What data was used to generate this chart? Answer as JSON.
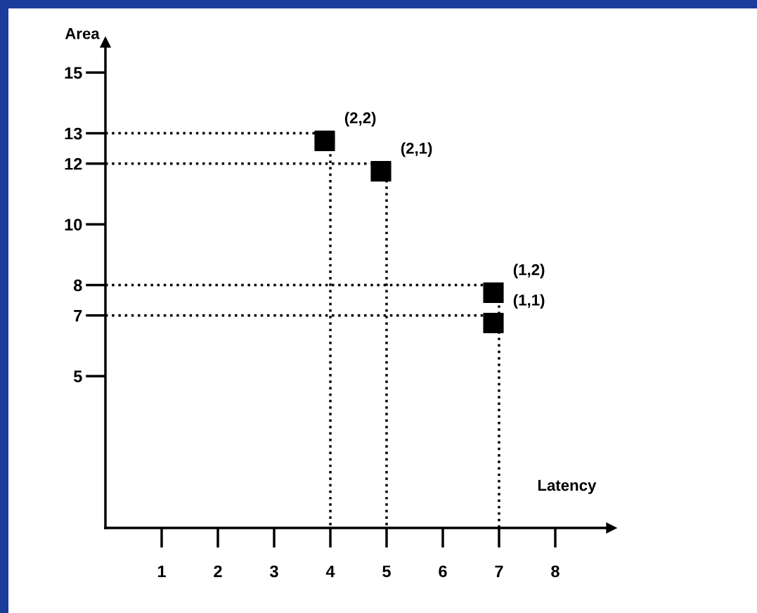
{
  "chart_data": {
    "type": "scatter",
    "xlabel": "Latency",
    "ylabel": "Area",
    "marker": "square",
    "grid": false,
    "xlim": [
      0,
      9
    ],
    "ylim": [
      0,
      16
    ],
    "xticks": [
      1,
      2,
      3,
      4,
      5,
      6,
      7,
      8
    ],
    "yticks": [
      5,
      7,
      8,
      10,
      12,
      13,
      15
    ],
    "series": [
      {
        "color": "#000000",
        "x": [
          3.9,
          4.9,
          6.9,
          6.9
        ],
        "values": [
          12.75,
          11.75,
          7.75,
          6.75
        ]
      },
      {
        "type": "line",
        "line_style": "dotted",
        "marker": "none",
        "color": "#000000",
        "x": [
          0,
          4,
          4
        ],
        "values": [
          13,
          13,
          0
        ]
      },
      {
        "type": "line",
        "line_style": "dotted",
        "marker": "none",
        "color": "#000000",
        "x": [
          0,
          5,
          5
        ],
        "values": [
          12,
          12,
          0
        ]
      },
      {
        "type": "line",
        "line_style": "dotted",
        "marker": "none",
        "color": "#000000",
        "x": [
          0,
          7,
          7
        ],
        "values": [
          8,
          8,
          0
        ]
      },
      {
        "type": "line",
        "line_style": "dotted",
        "marker": "none",
        "color": "#000000",
        "x": [
          0,
          7
        ],
        "values": [
          7,
          7
        ]
      }
    ],
    "annotations": [
      {
        "text": "(2,2)",
        "x": 3.9,
        "y": 12.75
      },
      {
        "text": "(2,1)",
        "x": 4.9,
        "y": 11.75
      },
      {
        "text": "(1,2)",
        "x": 6.9,
        "y": 7.75
      },
      {
        "text": "(1,1)",
        "x": 6.9,
        "y": 6.75
      }
    ]
  }
}
